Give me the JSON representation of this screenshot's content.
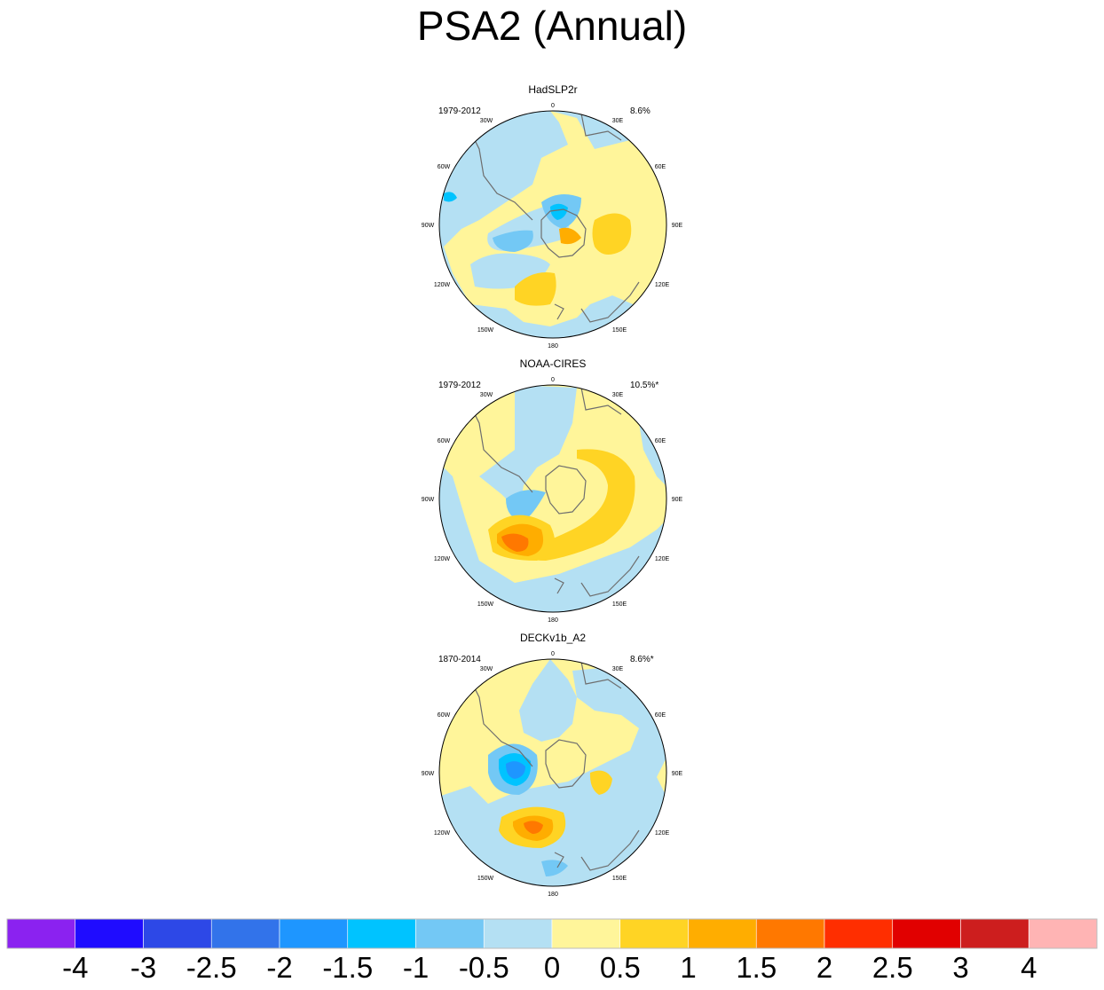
{
  "title": "PSA2 (Annual)",
  "panels": [
    {
      "name": "HadSLP2r",
      "period": "1979-2012",
      "variance": "8.6%"
    },
    {
      "name": "NOAA-CIRES",
      "period": "1979-2012",
      "variance": "10.5%*"
    },
    {
      "name": "DECKv1b_A2",
      "period": "1870-2014",
      "variance": "8.6%*"
    }
  ],
  "longitude_labels": {
    "top": "0",
    "nne": "30E",
    "ene": "60E",
    "east": "90E",
    "ese": "120E",
    "sse": "150E",
    "bottom": "180",
    "ssw": "150W",
    "wsw": "120W",
    "west": "90W",
    "wnw": "60W",
    "nnw": "30W"
  },
  "colorbar": {
    "colors": [
      "#8b22f0",
      "#1f0cff",
      "#2d48e7",
      "#3273ea",
      "#1e96ff",
      "#00c3ff",
      "#73c8f5",
      "#b4e0f3",
      "#fff59a",
      "#ffd424",
      "#ffad00",
      "#ff7800",
      "#ff2e00",
      "#e10000",
      "#cd1e1e",
      "#ffb4b4"
    ],
    "labels": [
      "-4",
      "-3",
      "-2.5",
      "-2",
      "-1.5",
      "-1",
      "-0.5",
      "0",
      "0.5",
      "1",
      "1.5",
      "2",
      "2.5",
      "3",
      "4"
    ]
  },
  "chart_data": {
    "type": "heatmap",
    "title": "PSA2 (Annual)",
    "projection": "south polar stereographic",
    "contour_levels": [
      -4,
      -3,
      -2.5,
      -2,
      -1.5,
      -1,
      -0.5,
      0,
      0.5,
      1,
      1.5,
      2,
      2.5,
      3,
      4
    ],
    "panels": [
      "HadSLP2r",
      "NOAA-CIRES",
      "DECKv1b_A2"
    ]
  }
}
